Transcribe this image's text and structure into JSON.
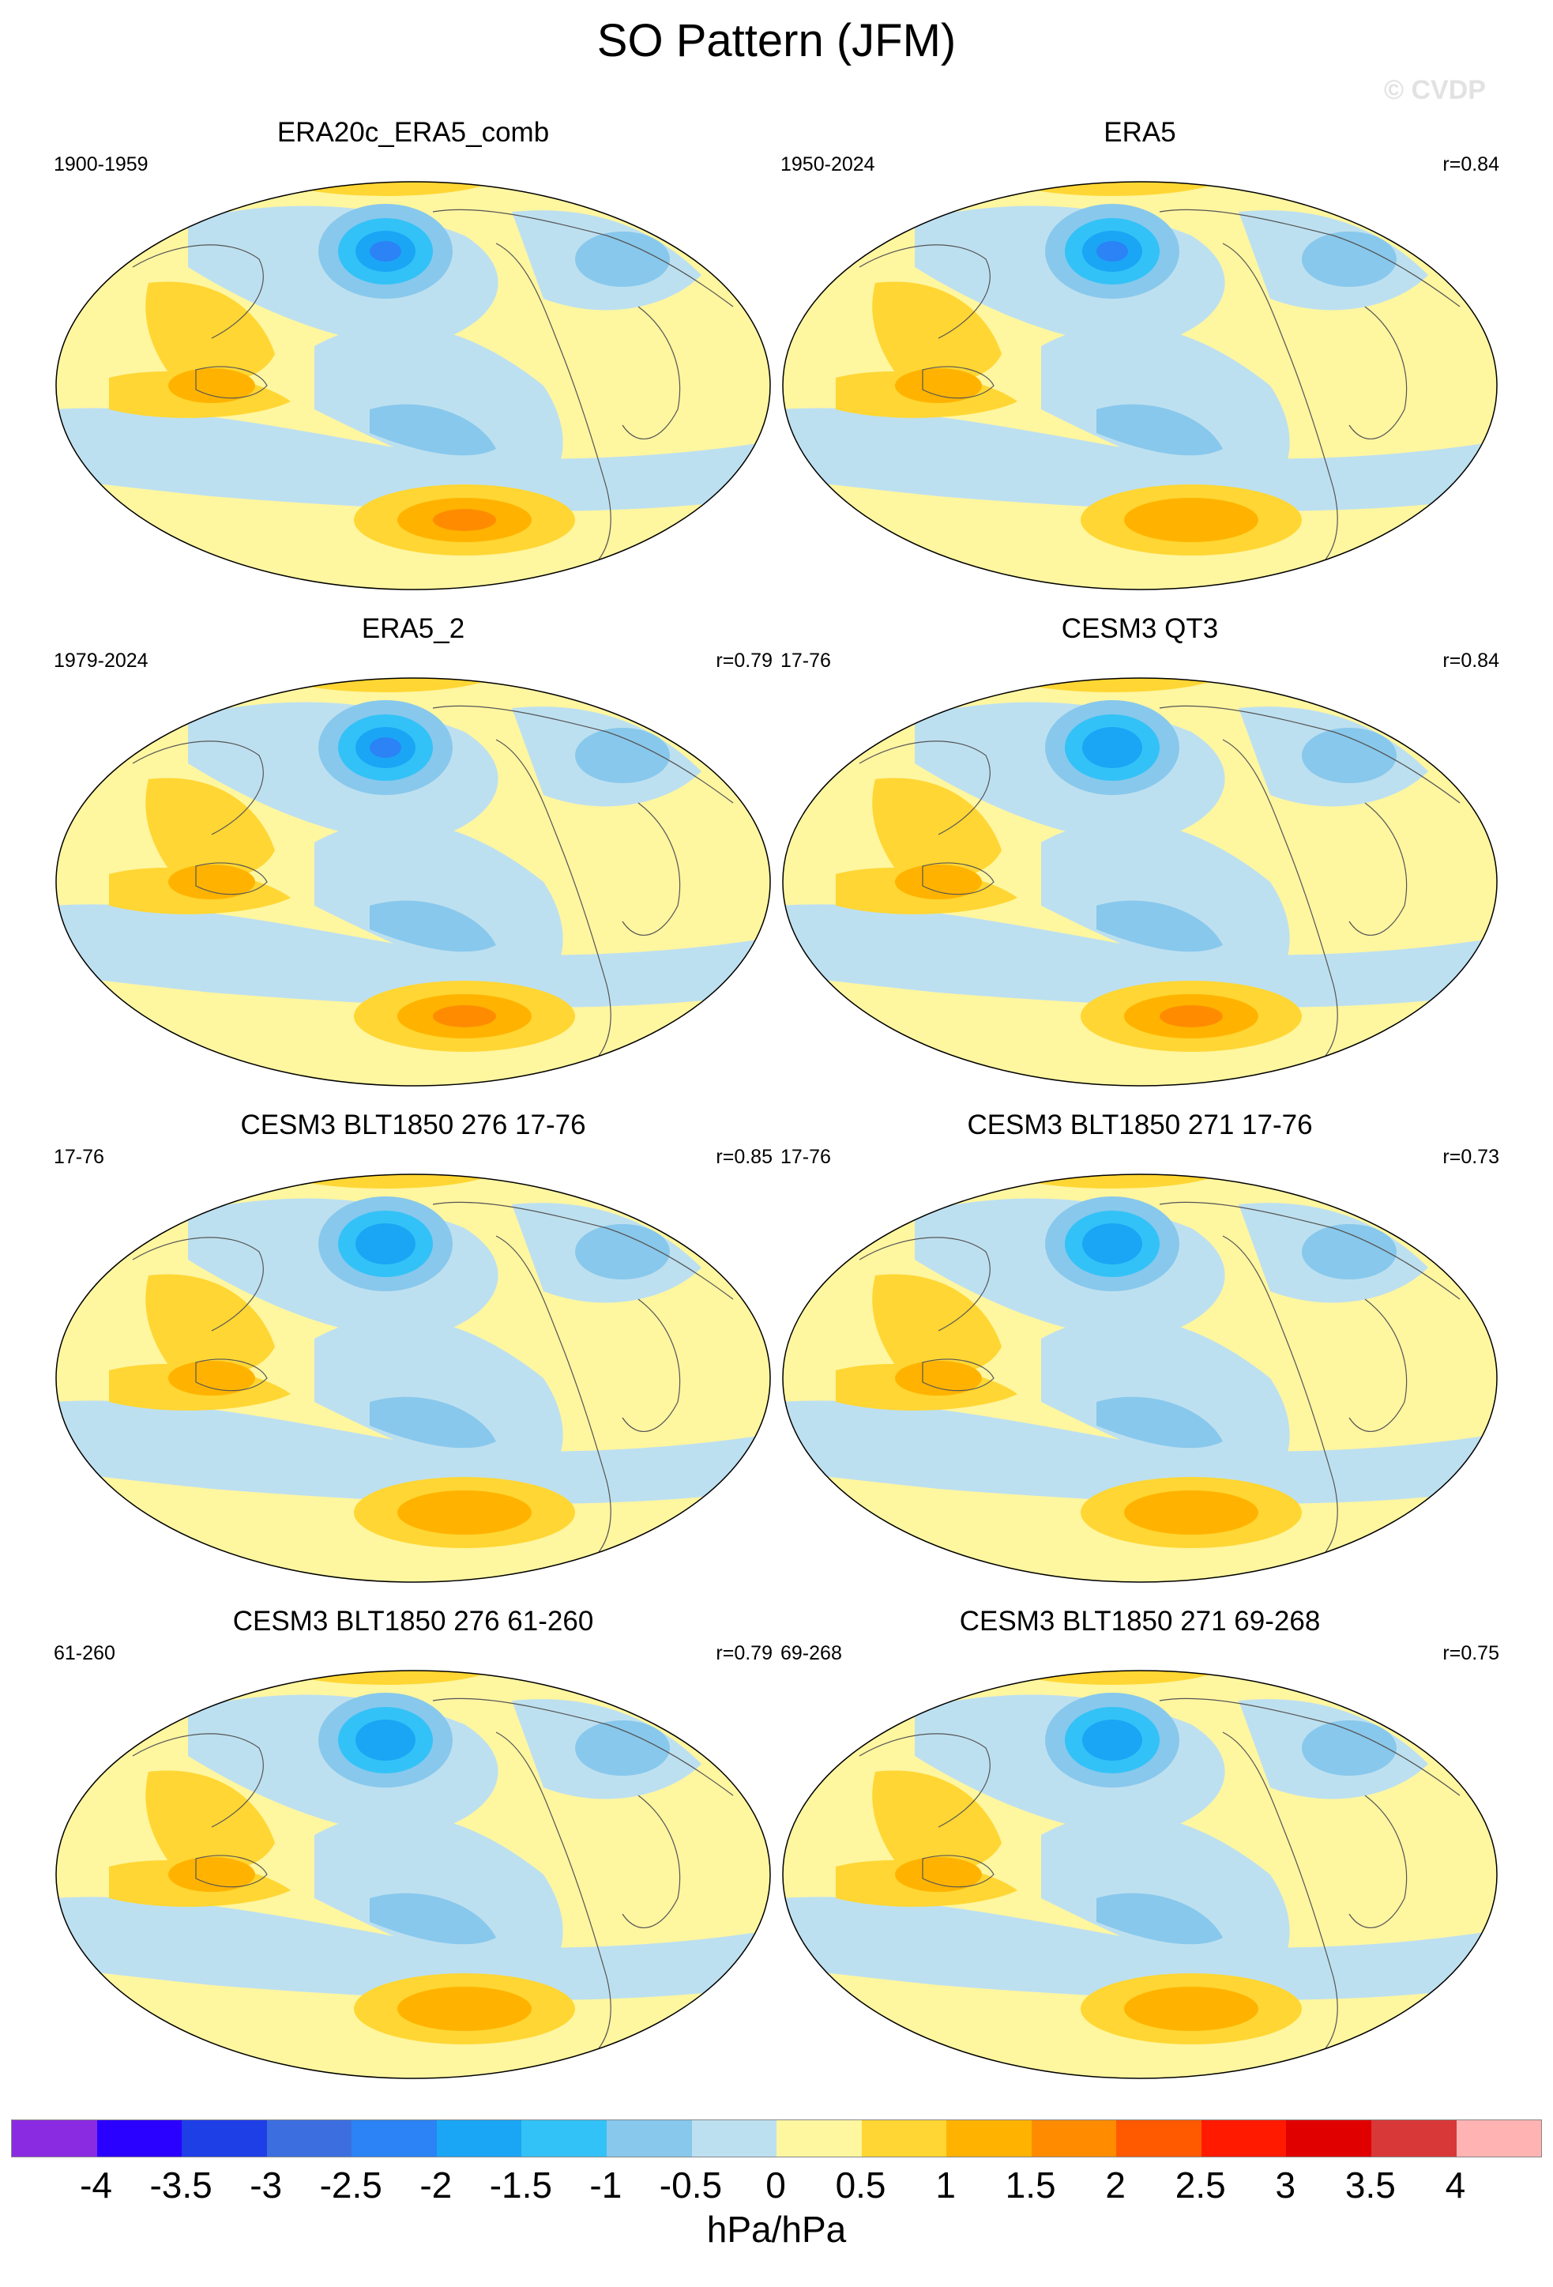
{
  "title": "SO Pattern (JFM)",
  "watermark": "© CVDP",
  "panels": [
    {
      "title": "ERA20c_ERA5_comb",
      "period": "1900-1959",
      "corr": ""
    },
    {
      "title": "ERA5",
      "period": "1950-2024",
      "corr": "r=0.84"
    },
    {
      "title": "ERA5_2",
      "period": "1979-2024",
      "corr": "r=0.79"
    },
    {
      "title": "CESM3 QT3",
      "period": "17-76",
      "corr": "r=0.84"
    },
    {
      "title": "CESM3 BLT1850 276 17-76",
      "period": "17-76",
      "corr": "r=0.85"
    },
    {
      "title": "CESM3 BLT1850 271 17-76",
      "period": "17-76",
      "corr": "r=0.73"
    },
    {
      "title": "CESM3 BLT1850 276 61-260",
      "period": "61-260",
      "corr": "r=0.79"
    },
    {
      "title": "CESM3 BLT1850 271 69-268",
      "period": "69-268",
      "corr": "r=0.75"
    }
  ],
  "colorbar": {
    "labels": [
      "-4",
      "-3.5",
      "-3",
      "-2.5",
      "-2",
      "-1.5",
      "-1",
      "-0.5",
      "0",
      "0.5",
      "1",
      "1.5",
      "2",
      "2.5",
      "3",
      "3.5",
      "4"
    ],
    "colors": [
      "#8a2be2",
      "#2a00ff",
      "#1e3ee6",
      "#3c6ee0",
      "#2b83f5",
      "#1aa6f5",
      "#33c2f7",
      "#88c8ec",
      "#bde0f0",
      "#fff6a0",
      "#ffd633",
      "#ffb300",
      "#ff8c00",
      "#ff5a00",
      "#ff1a00",
      "#e00000",
      "#d83838",
      "#ffb3b3"
    ],
    "units": "hPa/hPa"
  }
}
